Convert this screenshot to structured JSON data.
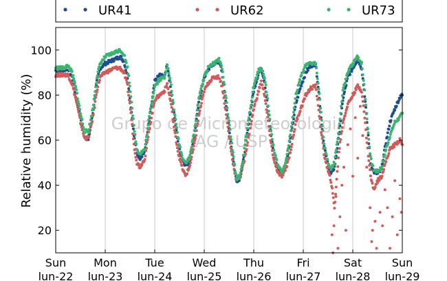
{
  "chart_data": {
    "type": "scatter",
    "ylabel": "Relative humidity (%)",
    "xlabel": "",
    "ylim": [
      10,
      110
    ],
    "yticks": [
      20,
      40,
      60,
      80,
      100
    ],
    "xlim_days": [
      0,
      7
    ],
    "xticks": [
      {
        "day": "Sun",
        "date": "lun-22"
      },
      {
        "day": "Mon",
        "date": "lun-23"
      },
      {
        "day": "Tue",
        "date": "lun-24"
      },
      {
        "day": "Wed",
        "date": "lun-25"
      },
      {
        "day": "Thu",
        "date": "lun-26"
      },
      {
        "day": "Fri",
        "date": "lun-27"
      },
      {
        "day": "Sat",
        "date": "lun-28"
      },
      {
        "day": "Sun",
        "date": "lun-29"
      }
    ],
    "grid": "vertical",
    "legend_position": "top",
    "watermark": [
      "Grupo de Micrometeorologia",
      "IAG / USP"
    ],
    "series": [
      {
        "name": "UR41",
        "color": "#1f4e8c",
        "points": [
          [
            0.0,
            91
          ],
          [
            0.15,
            91
          ],
          [
            0.25,
            92
          ],
          [
            0.33,
            88
          ],
          [
            0.42,
            78
          ],
          [
            0.5,
            70
          ],
          [
            0.58,
            62
          ],
          [
            0.66,
            60
          ],
          [
            0.75,
            72
          ],
          [
            0.83,
            86
          ],
          [
            0.9,
            92
          ],
          [
            1.0,
            94
          ],
          [
            1.1,
            95
          ],
          [
            1.2,
            96
          ],
          [
            1.3,
            97
          ],
          [
            1.38,
            95
          ],
          [
            1.45,
            88
          ],
          [
            1.52,
            75
          ],
          [
            1.58,
            62
          ],
          [
            1.64,
            54
          ],
          [
            1.7,
            52
          ],
          [
            1.8,
            55
          ],
          [
            1.9,
            70
          ],
          [
            2.0,
            86
          ],
          [
            2.1,
            89
          ],
          [
            2.2,
            88
          ],
          [
            2.25,
            94
          ],
          [
            2.33,
            82
          ],
          [
            2.4,
            70
          ],
          [
            2.48,
            58
          ],
          [
            2.55,
            52
          ],
          [
            2.62,
            49
          ],
          [
            2.7,
            50
          ],
          [
            2.8,
            62
          ],
          [
            2.9,
            78
          ],
          [
            3.0,
            88
          ],
          [
            3.1,
            92
          ],
          [
            3.2,
            94
          ],
          [
            3.3,
            95
          ],
          [
            3.36,
            90
          ],
          [
            3.42,
            80
          ],
          [
            3.5,
            65
          ],
          [
            3.58,
            52
          ],
          [
            3.65,
            42
          ],
          [
            3.72,
            43
          ],
          [
            3.8,
            52
          ],
          [
            3.9,
            68
          ],
          [
            4.0,
            82
          ],
          [
            4.1,
            90
          ],
          [
            4.15,
            92
          ],
          [
            4.22,
            86
          ],
          [
            4.28,
            75
          ],
          [
            4.35,
            62
          ],
          [
            4.42,
            52
          ],
          [
            4.5,
            47
          ],
          [
            4.58,
            45
          ],
          [
            4.66,
            50
          ],
          [
            4.75,
            62
          ],
          [
            4.85,
            76
          ],
          [
            4.95,
            84
          ],
          [
            5.05,
            90
          ],
          [
            5.15,
            93
          ],
          [
            5.25,
            94
          ],
          [
            5.3,
            84
          ],
          [
            5.36,
            70
          ],
          [
            5.42,
            57
          ],
          [
            5.5,
            49
          ],
          [
            5.56,
            45
          ],
          [
            5.63,
            48
          ],
          [
            5.72,
            62
          ],
          [
            5.8,
            78
          ],
          [
            5.9,
            88
          ],
          [
            6.0,
            92
          ],
          [
            6.1,
            96
          ],
          [
            6.18,
            92
          ],
          [
            6.24,
            80
          ],
          [
            6.3,
            65
          ],
          [
            6.36,
            50
          ],
          [
            6.42,
            46
          ],
          [
            6.5,
            45
          ],
          [
            6.58,
            47
          ],
          [
            6.66,
            58
          ],
          [
            6.75,
            68
          ],
          [
            6.85,
            74
          ],
          [
            6.95,
            79
          ],
          [
            7.0,
            80
          ]
        ]
      },
      {
        "name": "UR62",
        "color": "#cd5c5c",
        "points": [
          [
            0.0,
            89
          ],
          [
            0.15,
            89
          ],
          [
            0.25,
            89
          ],
          [
            0.33,
            85
          ],
          [
            0.42,
            77
          ],
          [
            0.5,
            68
          ],
          [
            0.58,
            61
          ],
          [
            0.66,
            61
          ],
          [
            0.75,
            70
          ],
          [
            0.83,
            82
          ],
          [
            0.9,
            88
          ],
          [
            1.0,
            90
          ],
          [
            1.1,
            91
          ],
          [
            1.2,
            92
          ],
          [
            1.3,
            92
          ],
          [
            1.38,
            90
          ],
          [
            1.45,
            84
          ],
          [
            1.52,
            72
          ],
          [
            1.58,
            58
          ],
          [
            1.64,
            50
          ],
          [
            1.7,
            48
          ],
          [
            1.8,
            52
          ],
          [
            1.9,
            66
          ],
          [
            2.0,
            78
          ],
          [
            2.1,
            80
          ],
          [
            2.2,
            82
          ],
          [
            2.25,
            85
          ],
          [
            2.33,
            76
          ],
          [
            2.4,
            64
          ],
          [
            2.48,
            54
          ],
          [
            2.55,
            48
          ],
          [
            2.62,
            44
          ],
          [
            2.7,
            48
          ],
          [
            2.8,
            58
          ],
          [
            2.9,
            72
          ],
          [
            3.0,
            82
          ],
          [
            3.1,
            86
          ],
          [
            3.2,
            88
          ],
          [
            3.3,
            88
          ],
          [
            3.36,
            84
          ],
          [
            3.42,
            75
          ],
          [
            3.5,
            62
          ],
          [
            3.58,
            50
          ],
          [
            3.65,
            42
          ],
          [
            3.72,
            44
          ],
          [
            3.8,
            50
          ],
          [
            3.9,
            62
          ],
          [
            4.0,
            74
          ],
          [
            4.1,
            82
          ],
          [
            4.15,
            86
          ],
          [
            4.22,
            80
          ],
          [
            4.28,
            70
          ],
          [
            4.35,
            58
          ],
          [
            4.42,
            50
          ],
          [
            4.5,
            45
          ],
          [
            4.58,
            44
          ],
          [
            4.66,
            48
          ],
          [
            4.75,
            56
          ],
          [
            4.85,
            68
          ],
          [
            4.95,
            74
          ],
          [
            5.05,
            80
          ],
          [
            5.15,
            83
          ],
          [
            5.25,
            84
          ],
          [
            5.3,
            76
          ],
          [
            5.36,
            64
          ],
          [
            5.42,
            54
          ],
          [
            5.5,
            46
          ],
          [
            5.56,
            42
          ],
          [
            5.63,
            30
          ],
          [
            5.72,
            55
          ],
          [
            5.8,
            68
          ],
          [
            5.9,
            76
          ],
          [
            6.0,
            80
          ],
          [
            6.1,
            84
          ],
          [
            6.18,
            82
          ],
          [
            6.24,
            70
          ],
          [
            6.3,
            56
          ],
          [
            6.36,
            44
          ],
          [
            6.42,
            38
          ],
          [
            6.5,
            42
          ],
          [
            6.58,
            44
          ],
          [
            6.66,
            50
          ],
          [
            6.75,
            56
          ],
          [
            6.85,
            58
          ],
          [
            6.95,
            60
          ],
          [
            7.0,
            58
          ],
          [
            5.58,
            18
          ],
          [
            5.6,
            10
          ],
          [
            5.62,
            22
          ],
          [
            5.66,
            35
          ],
          [
            5.7,
            12
          ],
          [
            5.74,
            26
          ],
          [
            5.78,
            40
          ],
          [
            5.82,
            48
          ],
          [
            5.86,
            20
          ],
          [
            5.9,
            58
          ],
          [
            5.95,
            65
          ],
          [
            6.0,
            44
          ],
          [
            6.05,
            70
          ],
          [
            6.1,
            52
          ],
          [
            6.15,
            75
          ],
          [
            6.2,
            62
          ],
          [
            6.28,
            48
          ],
          [
            6.35,
            30
          ],
          [
            6.38,
            15
          ],
          [
            6.4,
            20
          ],
          [
            6.45,
            24
          ],
          [
            6.48,
            12
          ],
          [
            6.55,
            28
          ],
          [
            6.6,
            22
          ],
          [
            6.65,
            38
          ],
          [
            6.7,
            30
          ],
          [
            6.75,
            12
          ],
          [
            6.8,
            26
          ],
          [
            6.85,
            42
          ],
          [
            6.9,
            18
          ],
          [
            6.95,
            34
          ],
          [
            6.98,
            28
          ]
        ]
      },
      {
        "name": "UR73",
        "color": "#3cb371",
        "points": [
          [
            0.0,
            92
          ],
          [
            0.15,
            92
          ],
          [
            0.25,
            93
          ],
          [
            0.33,
            90
          ],
          [
            0.42,
            82
          ],
          [
            0.5,
            72
          ],
          [
            0.58,
            64
          ],
          [
            0.66,
            64
          ],
          [
            0.75,
            74
          ],
          [
            0.83,
            88
          ],
          [
            0.9,
            94
          ],
          [
            1.0,
            97
          ],
          [
            1.1,
            98
          ],
          [
            1.2,
            99
          ],
          [
            1.3,
            100
          ],
          [
            1.38,
            98
          ],
          [
            1.45,
            92
          ],
          [
            1.52,
            80
          ],
          [
            1.58,
            66
          ],
          [
            1.64,
            56
          ],
          [
            1.7,
            54
          ],
          [
            1.8,
            56
          ],
          [
            1.9,
            72
          ],
          [
            2.0,
            84
          ],
          [
            2.1,
            87
          ],
          [
            2.2,
            88
          ],
          [
            2.25,
            94
          ],
          [
            2.33,
            84
          ],
          [
            2.4,
            72
          ],
          [
            2.48,
            60
          ],
          [
            2.55,
            53
          ],
          [
            2.62,
            50
          ],
          [
            2.7,
            52
          ],
          [
            2.8,
            64
          ],
          [
            2.9,
            80
          ],
          [
            3.0,
            88
          ],
          [
            3.1,
            93
          ],
          [
            3.2,
            94
          ],
          [
            3.3,
            96
          ],
          [
            3.36,
            92
          ],
          [
            3.42,
            82
          ],
          [
            3.5,
            68
          ],
          [
            3.58,
            54
          ],
          [
            3.65,
            43
          ],
          [
            3.72,
            44
          ],
          [
            3.8,
            54
          ],
          [
            3.9,
            70
          ],
          [
            4.0,
            84
          ],
          [
            4.1,
            91
          ],
          [
            4.15,
            92
          ],
          [
            4.22,
            88
          ],
          [
            4.28,
            78
          ],
          [
            4.35,
            64
          ],
          [
            4.42,
            54
          ],
          [
            4.5,
            48
          ],
          [
            4.58,
            46
          ],
          [
            4.66,
            52
          ],
          [
            4.75,
            64
          ],
          [
            4.85,
            80
          ],
          [
            4.95,
            88
          ],
          [
            5.05,
            93
          ],
          [
            5.15,
            94
          ],
          [
            5.25,
            94
          ],
          [
            5.3,
            86
          ],
          [
            5.36,
            72
          ],
          [
            5.42,
            58
          ],
          [
            5.5,
            50
          ],
          [
            5.56,
            47
          ],
          [
            5.63,
            50
          ],
          [
            5.72,
            65
          ],
          [
            5.8,
            82
          ],
          [
            5.9,
            90
          ],
          [
            6.0,
            94
          ],
          [
            6.1,
            97
          ],
          [
            6.18,
            94
          ],
          [
            6.24,
            82
          ],
          [
            6.3,
            66
          ],
          [
            6.36,
            52
          ],
          [
            6.42,
            47
          ],
          [
            6.5,
            46
          ],
          [
            6.58,
            48
          ],
          [
            6.66,
            55
          ],
          [
            6.75,
            62
          ],
          [
            6.85,
            68
          ],
          [
            6.95,
            70
          ],
          [
            7.0,
            72
          ]
        ]
      }
    ]
  }
}
